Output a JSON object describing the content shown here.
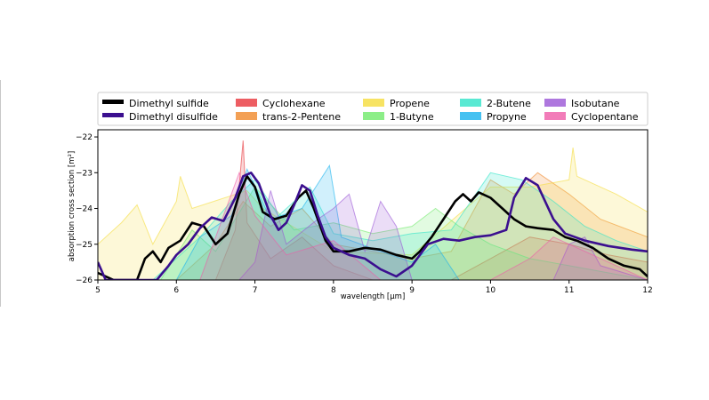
{
  "chart_data": {
    "type": "area",
    "xlabel": "wavelength [μm]",
    "ylabel": "absorption cross section [m²]",
    "xlim": [
      5,
      12
    ],
    "ylim": [
      -26,
      -21.8
    ],
    "x_ticks": [
      "5",
      "6",
      "7",
      "8",
      "9",
      "10",
      "11",
      "12"
    ],
    "y_ticks": [
      "−22",
      "−23",
      "−24",
      "−25",
      "−26"
    ],
    "legend_position": "top",
    "legend_columns": 5,
    "series": [
      {
        "name": "Dimethyl sulfide",
        "color": "#000000",
        "style": "line",
        "points": [
          [
            5.0,
            -25.8
          ],
          [
            5.2,
            -26.0
          ],
          [
            5.5,
            -26.0
          ],
          [
            5.6,
            -25.4
          ],
          [
            5.7,
            -25.2
          ],
          [
            5.8,
            -25.5
          ],
          [
            5.9,
            -25.1
          ],
          [
            6.05,
            -24.9
          ],
          [
            6.2,
            -24.4
          ],
          [
            6.35,
            -24.5
          ],
          [
            6.5,
            -25.0
          ],
          [
            6.65,
            -24.7
          ],
          [
            6.8,
            -23.6
          ],
          [
            6.9,
            -23.1
          ],
          [
            7.0,
            -23.4
          ],
          [
            7.1,
            -24.1
          ],
          [
            7.25,
            -24.3
          ],
          [
            7.4,
            -24.2
          ],
          [
            7.55,
            -23.7
          ],
          [
            7.65,
            -23.5
          ],
          [
            7.75,
            -24.0
          ],
          [
            7.9,
            -24.9
          ],
          [
            8.0,
            -25.2
          ],
          [
            8.2,
            -25.2
          ],
          [
            8.4,
            -25.1
          ],
          [
            8.6,
            -25.15
          ],
          [
            8.8,
            -25.3
          ],
          [
            9.0,
            -25.4
          ],
          [
            9.1,
            -25.2
          ],
          [
            9.25,
            -24.8
          ],
          [
            9.4,
            -24.3
          ],
          [
            9.55,
            -23.8
          ],
          [
            9.65,
            -23.6
          ],
          [
            9.75,
            -23.8
          ],
          [
            9.85,
            -23.55
          ],
          [
            10.0,
            -23.7
          ],
          [
            10.15,
            -24.0
          ],
          [
            10.3,
            -24.3
          ],
          [
            10.45,
            -24.5
          ],
          [
            10.6,
            -24.55
          ],
          [
            10.8,
            -24.6
          ],
          [
            10.95,
            -24.8
          ],
          [
            11.1,
            -24.9
          ],
          [
            11.3,
            -25.1
          ],
          [
            11.5,
            -25.4
          ],
          [
            11.7,
            -25.6
          ],
          [
            11.9,
            -25.7
          ],
          [
            12.0,
            -25.9
          ]
        ]
      },
      {
        "name": "Dimethyl disulfide",
        "color": "#3b0f8f",
        "style": "line",
        "points": [
          [
            5.0,
            -25.5
          ],
          [
            5.1,
            -26.0
          ],
          [
            5.75,
            -26.0
          ],
          [
            5.9,
            -25.6
          ],
          [
            6.0,
            -25.3
          ],
          [
            6.15,
            -25.0
          ],
          [
            6.3,
            -24.55
          ],
          [
            6.45,
            -24.25
          ],
          [
            6.6,
            -24.35
          ],
          [
            6.75,
            -23.7
          ],
          [
            6.85,
            -23.1
          ],
          [
            6.95,
            -23.0
          ],
          [
            7.05,
            -23.3
          ],
          [
            7.2,
            -24.2
          ],
          [
            7.3,
            -24.6
          ],
          [
            7.4,
            -24.4
          ],
          [
            7.5,
            -23.9
          ],
          [
            7.6,
            -23.35
          ],
          [
            7.7,
            -23.5
          ],
          [
            7.8,
            -24.2
          ],
          [
            7.9,
            -24.8
          ],
          [
            8.0,
            -25.1
          ],
          [
            8.2,
            -25.3
          ],
          [
            8.4,
            -25.4
          ],
          [
            8.6,
            -25.7
          ],
          [
            8.8,
            -25.9
          ],
          [
            9.0,
            -25.6
          ],
          [
            9.2,
            -25.0
          ],
          [
            9.4,
            -24.85
          ],
          [
            9.6,
            -24.9
          ],
          [
            9.8,
            -24.8
          ],
          [
            10.0,
            -24.75
          ],
          [
            10.2,
            -24.6
          ],
          [
            10.3,
            -23.7
          ],
          [
            10.45,
            -23.15
          ],
          [
            10.6,
            -23.35
          ],
          [
            10.8,
            -24.3
          ],
          [
            10.95,
            -24.7
          ],
          [
            11.2,
            -24.9
          ],
          [
            11.5,
            -25.05
          ],
          [
            11.8,
            -25.15
          ],
          [
            12.0,
            -25.2
          ]
        ]
      },
      {
        "name": "Cyclohexane",
        "color": "#e8353b",
        "style": "area",
        "points": [
          [
            5.0,
            -26.0
          ],
          [
            6.5,
            -26.0
          ],
          [
            6.75,
            -24.6
          ],
          [
            6.85,
            -22.1
          ],
          [
            6.9,
            -24.4
          ],
          [
            7.2,
            -25.4
          ],
          [
            7.6,
            -24.8
          ],
          [
            8.0,
            -25.6
          ],
          [
            8.5,
            -26.0
          ],
          [
            9.5,
            -26.0
          ],
          [
            10.0,
            -25.4
          ],
          [
            10.5,
            -24.8
          ],
          [
            11.0,
            -25.0
          ],
          [
            11.5,
            -25.3
          ],
          [
            12.0,
            -25.5
          ]
        ]
      },
      {
        "name": "trans-2-Pentene",
        "color": "#f0882b",
        "style": "area",
        "points": [
          [
            5.0,
            -26.0
          ],
          [
            6.0,
            -26.0
          ],
          [
            6.5,
            -25.0
          ],
          [
            6.85,
            -23.8
          ],
          [
            7.2,
            -24.5
          ],
          [
            7.6,
            -24.0
          ],
          [
            8.0,
            -25.0
          ],
          [
            8.5,
            -25.2
          ],
          [
            9.0,
            -25.4
          ],
          [
            9.5,
            -25.2
          ],
          [
            10.0,
            -23.2
          ],
          [
            10.3,
            -23.6
          ],
          [
            10.6,
            -23.0
          ],
          [
            11.0,
            -23.6
          ],
          [
            11.4,
            -24.3
          ],
          [
            12.0,
            -24.8
          ]
        ]
      },
      {
        "name": "Propene",
        "color": "#f5dc3c",
        "style": "area",
        "points": [
          [
            5.0,
            -25.0
          ],
          [
            5.3,
            -24.4
          ],
          [
            5.5,
            -23.9
          ],
          [
            5.7,
            -25.0
          ],
          [
            6.0,
            -23.8
          ],
          [
            6.05,
            -23.1
          ],
          [
            6.2,
            -24.0
          ],
          [
            6.9,
            -23.5
          ],
          [
            7.1,
            -24.0
          ],
          [
            8.0,
            -25.2
          ],
          [
            9.0,
            -25.3
          ],
          [
            10.0,
            -23.4
          ],
          [
            10.5,
            -23.4
          ],
          [
            11.0,
            -23.2
          ],
          [
            11.05,
            -22.3
          ],
          [
            11.1,
            -23.1
          ],
          [
            11.6,
            -23.6
          ],
          [
            12.0,
            -24.1
          ]
        ]
      },
      {
        "name": "1-Butyne",
        "color": "#6fea6a",
        "style": "area",
        "points": [
          [
            5.0,
            -26.0
          ],
          [
            5.8,
            -26.0
          ],
          [
            6.2,
            -24.6
          ],
          [
            6.5,
            -25.2
          ],
          [
            7.0,
            -23.4
          ],
          [
            7.5,
            -24.6
          ],
          [
            8.0,
            -24.4
          ],
          [
            8.5,
            -24.7
          ],
          [
            9.0,
            -24.5
          ],
          [
            9.3,
            -24.0
          ],
          [
            9.6,
            -24.5
          ],
          [
            10.0,
            -25.0
          ],
          [
            10.5,
            -25.4
          ],
          [
            11.0,
            -25.6
          ],
          [
            12.0,
            -26.0
          ]
        ]
      },
      {
        "name": "2-Butene",
        "color": "#2fe4c8",
        "style": "area",
        "points": [
          [
            5.0,
            -26.0
          ],
          [
            5.7,
            -26.0
          ],
          [
            6.3,
            -24.8
          ],
          [
            6.7,
            -23.8
          ],
          [
            7.0,
            -23.2
          ],
          [
            7.3,
            -24.2
          ],
          [
            7.7,
            -23.4
          ],
          [
            8.0,
            -24.7
          ],
          [
            8.5,
            -24.9
          ],
          [
            9.0,
            -24.7
          ],
          [
            9.5,
            -24.6
          ],
          [
            10.0,
            -23.0
          ],
          [
            10.4,
            -23.2
          ],
          [
            10.8,
            -23.8
          ],
          [
            11.2,
            -24.5
          ],
          [
            11.6,
            -24.9
          ],
          [
            12.0,
            -25.2
          ]
        ]
      },
      {
        "name": "Propyne",
        "color": "#17b2ee",
        "style": "area",
        "points": [
          [
            5.0,
            -26.0
          ],
          [
            6.0,
            -26.0
          ],
          [
            6.3,
            -24.8
          ],
          [
            6.7,
            -24.2
          ],
          [
            6.9,
            -22.9
          ],
          [
            7.2,
            -24.3
          ],
          [
            7.6,
            -24.0
          ],
          [
            7.95,
            -22.8
          ],
          [
            8.1,
            -24.8
          ],
          [
            8.6,
            -25.2
          ],
          [
            9.0,
            -25.5
          ],
          [
            9.3,
            -25.0
          ],
          [
            9.6,
            -26.0
          ],
          [
            12.0,
            -26.0
          ]
        ]
      },
      {
        "name": "Isobutane",
        "color": "#9a55d6",
        "style": "area",
        "points": [
          [
            5.0,
            -26.0
          ],
          [
            6.8,
            -26.0
          ],
          [
            7.0,
            -25.5
          ],
          [
            7.2,
            -23.5
          ],
          [
            7.4,
            -25.0
          ],
          [
            7.8,
            -24.3
          ],
          [
            8.0,
            -24.0
          ],
          [
            8.2,
            -23.6
          ],
          [
            8.4,
            -25.2
          ],
          [
            8.6,
            -23.8
          ],
          [
            8.8,
            -24.5
          ],
          [
            9.0,
            -26.0
          ],
          [
            10.8,
            -26.0
          ],
          [
            11.0,
            -25.0
          ],
          [
            11.2,
            -24.8
          ],
          [
            11.4,
            -25.6
          ],
          [
            12.0,
            -26.0
          ]
        ]
      },
      {
        "name": "Cyclopentane",
        "color": "#ef5ba8",
        "style": "area",
        "points": [
          [
            5.0,
            -26.0
          ],
          [
            6.3,
            -26.0
          ],
          [
            6.8,
            -23.0
          ],
          [
            7.0,
            -24.2
          ],
          [
            7.4,
            -25.3
          ],
          [
            8.0,
            -24.9
          ],
          [
            8.6,
            -26.0
          ],
          [
            10.0,
            -26.0
          ],
          [
            10.5,
            -25.4
          ],
          [
            10.8,
            -24.8
          ],
          [
            11.2,
            -25.2
          ],
          [
            12.0,
            -26.0
          ]
        ]
      }
    ]
  }
}
